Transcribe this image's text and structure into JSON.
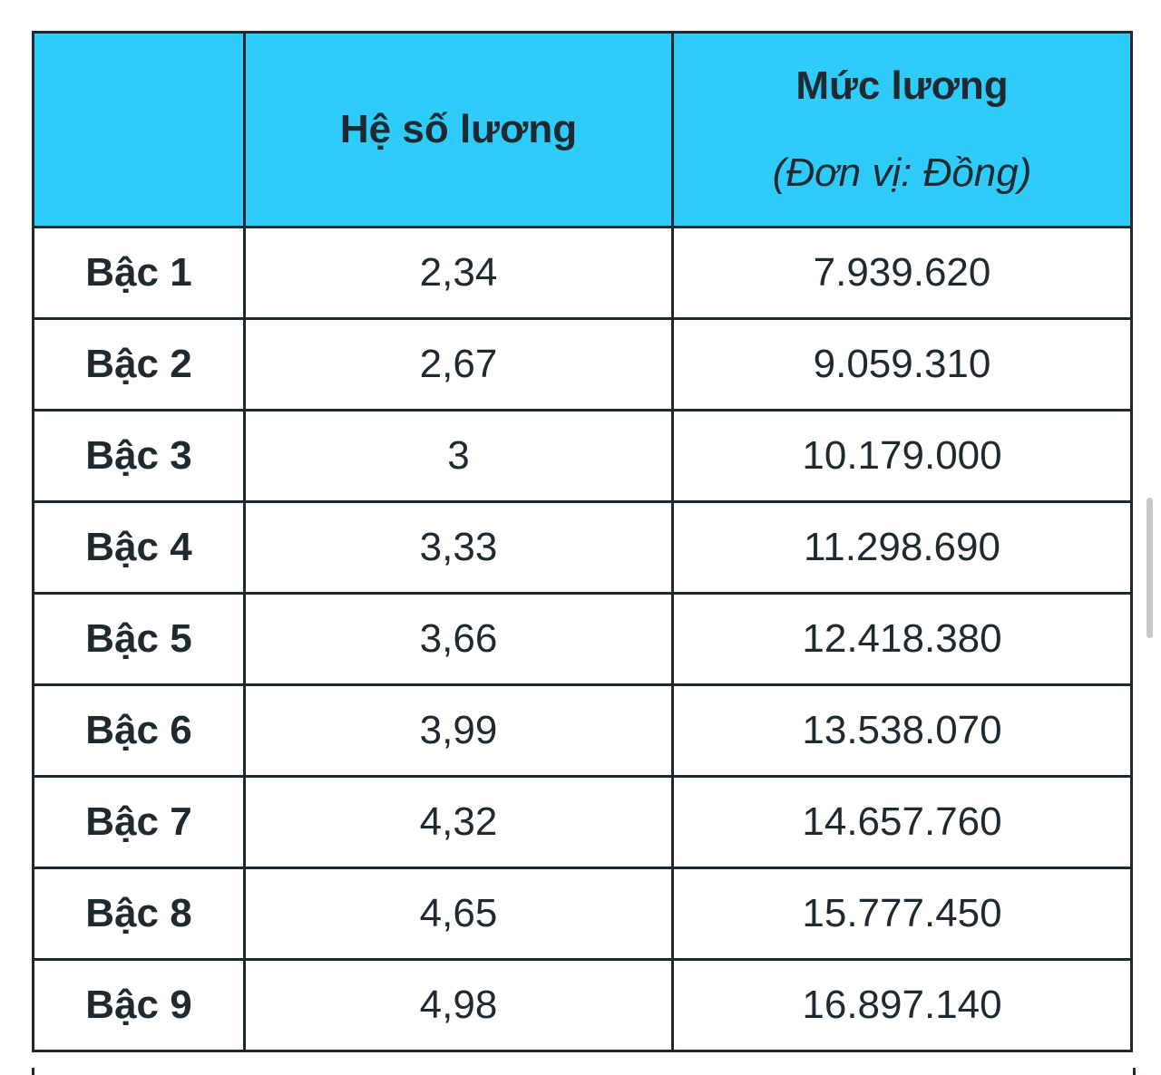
{
  "colors": {
    "header_bg": "#2ecbfb",
    "border": "#1f2a30"
  },
  "table": {
    "headers": {
      "level": "",
      "coefficient": "Hệ số lương",
      "salary": "Mức lương",
      "salary_unit": "(Đơn vị: Đồng)"
    },
    "rows": [
      {
        "level": "Bậc 1",
        "coefficient": "2,34",
        "salary": "7.939.620"
      },
      {
        "level": "Bậc 2",
        "coefficient": "2,67",
        "salary": "9.059.310"
      },
      {
        "level": "Bậc 3",
        "coefficient": "3",
        "salary": "10.179.000"
      },
      {
        "level": "Bậc 4",
        "coefficient": "3,33",
        "salary": "11.298.690"
      },
      {
        "level": "Bậc 5",
        "coefficient": "3,66",
        "salary": "12.418.380"
      },
      {
        "level": "Bậc 6",
        "coefficient": "3,99",
        "salary": "13.538.070"
      },
      {
        "level": "Bậc 7",
        "coefficient": "4,32",
        "salary": "14.657.760"
      },
      {
        "level": "Bậc 8",
        "coefficient": "4,65",
        "salary": "15.777.450"
      },
      {
        "level": "Bậc 9",
        "coefficient": "4,98",
        "salary": "16.897.140"
      }
    ]
  }
}
